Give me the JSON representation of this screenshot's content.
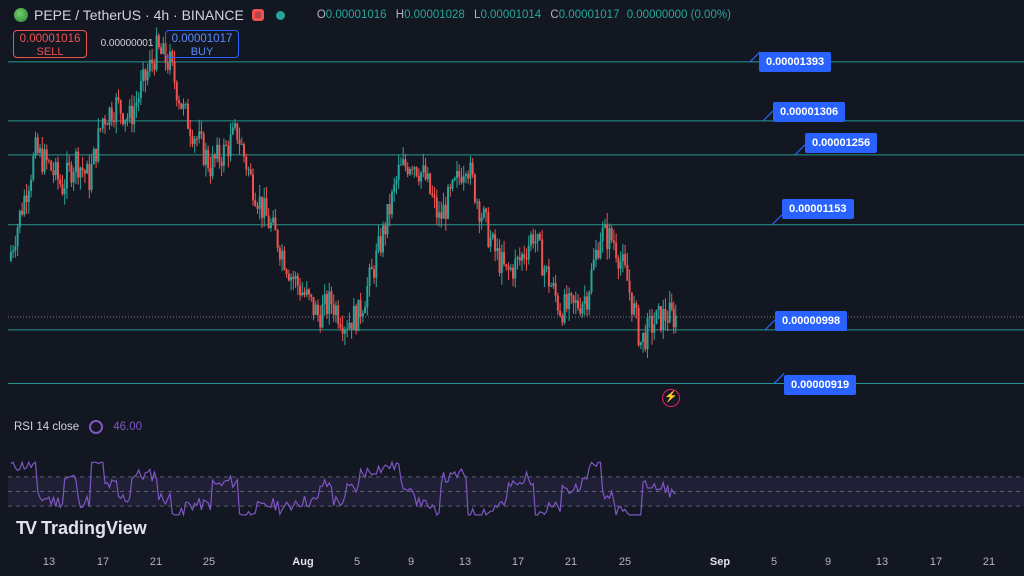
{
  "header": {
    "symbol_title": "PEPE / TetherUS · 4h · BINANCE",
    "ohlc": [
      {
        "k": "O",
        "v": "0.00001016"
      },
      {
        "k": "H",
        "v": "0.00001028"
      },
      {
        "k": "L",
        "v": "0.00001014"
      },
      {
        "k": "C",
        "v": "0.00001017"
      }
    ],
    "change": "0.00000000 (0.00%)",
    "colors": {
      "up": "#26a69a",
      "down": "#ef5350",
      "accent": "#2962ff"
    }
  },
  "trade": {
    "sell_price": "0.00001016",
    "sell_label": "SELL",
    "spread": "0.00000001",
    "buy_price": "0.00001017",
    "buy_label": "BUY"
  },
  "rsi": {
    "name": "RSI 14 close",
    "value": "46.00"
  },
  "branding": {
    "text": "TradingView",
    "logo": "TV"
  },
  "chart_data": {
    "type": "candlestick",
    "price_range": [
      8.8e-06,
      1.44e-05
    ],
    "levels": [
      {
        "label": "0.00001393",
        "value": 1.393e-05
      },
      {
        "label": "0.00001306",
        "value": 1.306e-05
      },
      {
        "label": "0.00001256",
        "value": 1.256e-05
      },
      {
        "label": "0.00001153",
        "value": 1.153e-05
      },
      {
        "label": "0.00000998",
        "value": 9.98e-06
      },
      {
        "label": "0.00000919",
        "value": 9.19e-06
      }
    ],
    "current_price": 1.017e-05,
    "x_tick_labels": [
      "13",
      "17",
      "21",
      "25",
      "Aug",
      "5",
      "9",
      "13",
      "17",
      "21",
      "25",
      "Sep",
      "5",
      "9",
      "13",
      "17",
      "21"
    ],
    "x_tick_days": [
      13,
      17,
      21,
      25,
      32,
      36,
      40,
      44,
      48,
      52,
      56,
      63,
      67,
      71,
      75,
      79,
      83
    ],
    "bold_ticks": [
      "Aug",
      "Sep"
    ],
    "price_path": [
      [
        10,
        1.1e-05
      ],
      [
        11,
        1.18e-05
      ],
      [
        12,
        1.26e-05
      ],
      [
        13,
        1.24e-05
      ],
      [
        14,
        1.21e-05
      ],
      [
        15,
        1.25e-05
      ],
      [
        16,
        1.22e-05
      ],
      [
        17,
        1.31e-05
      ],
      [
        18,
        1.33e-05
      ],
      [
        19,
        1.31e-05
      ],
      [
        20,
        1.36e-05
      ],
      [
        21,
        1.41e-05
      ],
      [
        22,
        1.39e-05
      ],
      [
        23,
        1.32e-05
      ],
      [
        24,
        1.28e-05
      ],
      [
        25,
        1.24e-05
      ],
      [
        26,
        1.26e-05
      ],
      [
        27,
        1.29e-05
      ],
      [
        28,
        1.22e-05
      ],
      [
        29,
        1.17e-05
      ],
      [
        30,
        1.13e-05
      ],
      [
        31,
        1.08e-05
      ],
      [
        32,
        1.05e-05
      ],
      [
        33,
        1.02e-05
      ],
      [
        34,
        1.04e-05
      ],
      [
        35,
        1.01e-05
      ],
      [
        36,
        1.02e-05
      ],
      [
        37,
        1.08e-05
      ],
      [
        38,
        1.15e-05
      ],
      [
        39,
        1.23e-05
      ],
      [
        40,
        1.25e-05
      ],
      [
        41,
        1.22e-05
      ],
      [
        42,
        1.16e-05
      ],
      [
        43,
        1.2e-05
      ],
      [
        44,
        1.25e-05
      ],
      [
        45,
        1.18e-05
      ],
      [
        46,
        1.12e-05
      ],
      [
        47,
        1.08e-05
      ],
      [
        48,
        1.1e-05
      ],
      [
        49,
        1.14e-05
      ],
      [
        50,
        1.08e-05
      ],
      [
        51,
        1.03e-05
      ],
      [
        52,
        1.03e-05
      ],
      [
        53,
        1.05e-05
      ],
      [
        54,
        1.14e-05
      ],
      [
        55,
        1.13e-05
      ],
      [
        56,
        1.07e-05
      ],
      [
        57,
        9.8e-06
      ],
      [
        58,
        1.01e-05
      ],
      [
        59,
        1.02e-05
      ],
      [
        59.6,
        1.017e-05
      ]
    ],
    "rsi_range": [
      0,
      100
    ],
    "rsi_bands": [
      30,
      50,
      70
    ],
    "rsi_value": 46.0,
    "rsi_colors": {
      "line": "#7e57c2",
      "fill": "#7e57c21f"
    }
  }
}
